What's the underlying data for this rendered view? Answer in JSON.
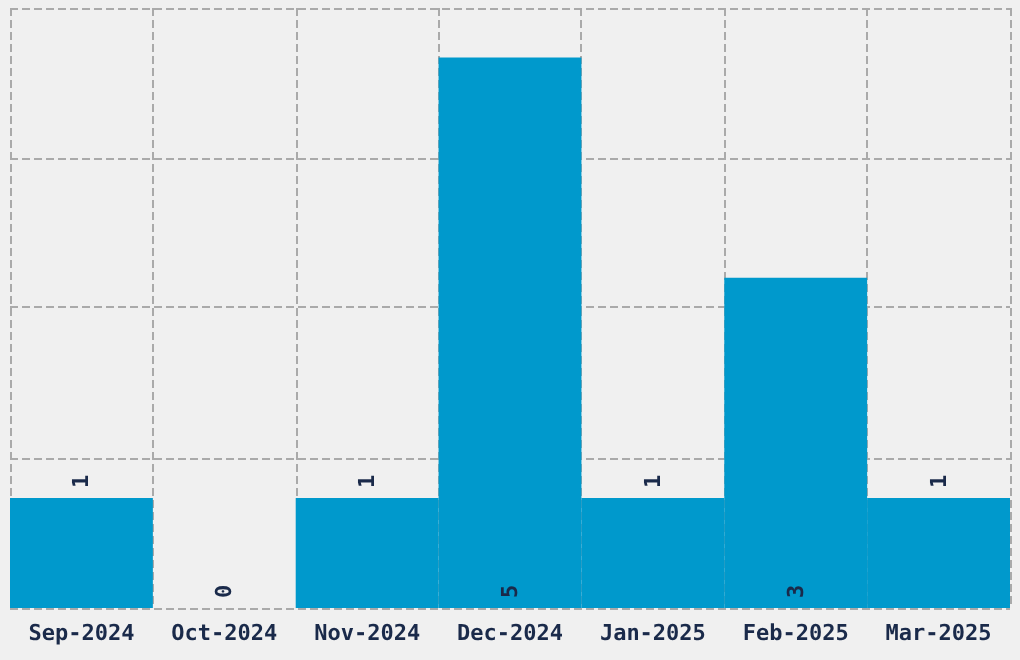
{
  "chart_data": {
    "type": "bar",
    "categories": [
      "Sep-2024",
      "Oct-2024",
      "Nov-2024",
      "Dec-2024",
      "Jan-2025",
      "Feb-2025",
      "Mar-2025"
    ],
    "values": [
      1,
      0,
      1,
      5,
      1,
      3,
      1
    ],
    "color": "#0099cc",
    "ylim": [
      0,
      5.45
    ],
    "yticks": [
      {
        "value": 0,
        "label": null
      },
      {
        "value": 1.36,
        "label": null
      },
      {
        "value": 2.73,
        "label": null
      },
      {
        "value": 4.09,
        "label": null
      },
      {
        "value": 5.45,
        "label": null
      }
    ],
    "tick_labels": "x",
    "grid": true,
    "data_labels": true
  }
}
